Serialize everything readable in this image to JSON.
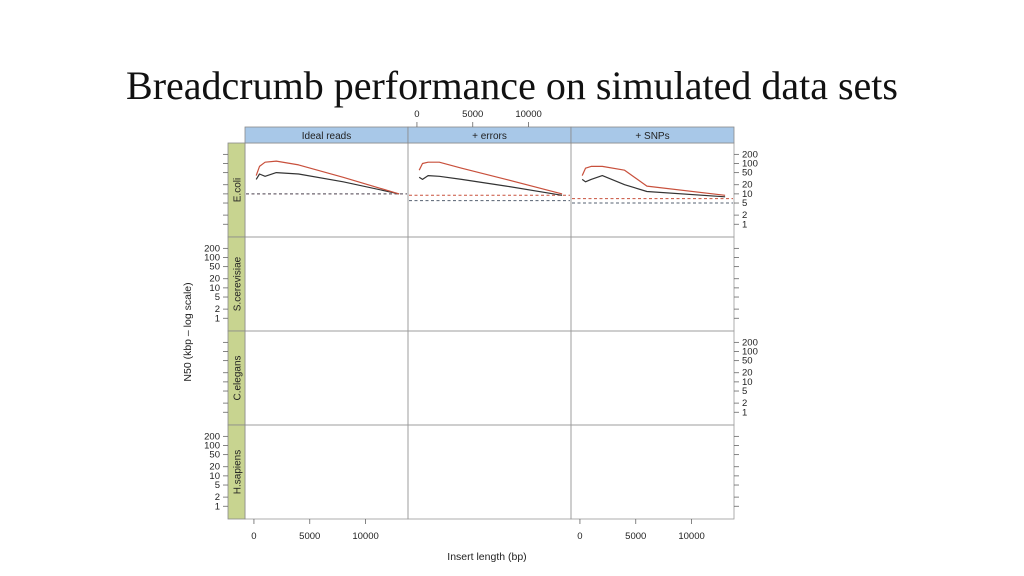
{
  "slide": {
    "title": "Breadcrumb performance on simulated data sets"
  },
  "chart_data": {
    "type": "line",
    "xlabel": "Insert length (bp)",
    "ylabel": "N50 (kbp – log scale)",
    "x_ticks": [
      0,
      5000,
      10000
    ],
    "y_ticks": [
      1,
      2,
      5,
      10,
      20,
      50,
      100,
      200
    ],
    "y_scale": "log",
    "ylim": [
      0.6,
      300
    ],
    "xlim": [
      -800,
      13800
    ],
    "columns": [
      "Ideal reads",
      "+ errors",
      "+ SNPs"
    ],
    "rows": [
      "E.coli",
      "S.cerevisiae",
      "C.elegans",
      "H.sapiens"
    ],
    "colors": {
      "red": "#c8503c",
      "black": "#333333",
      "strip_col": "#a8c8e8",
      "strip_row": "#c8d490"
    },
    "panels": [
      {
        "row": "E.coli",
        "col": "Ideal reads",
        "red": [
          [
            200,
            40
          ],
          [
            500,
            80
          ],
          [
            1000,
            110
          ],
          [
            2000,
            120
          ],
          [
            4000,
            90
          ],
          [
            8000,
            35
          ],
          [
            13000,
            10
          ]
        ],
        "black": [
          [
            200,
            30
          ],
          [
            500,
            45
          ],
          [
            1000,
            38
          ],
          [
            2000,
            50
          ],
          [
            4000,
            45
          ],
          [
            8000,
            25
          ],
          [
            13000,
            10
          ]
        ],
        "red_dash": 10,
        "black_dash": 10
      },
      {
        "row": "E.coli",
        "col": "+ errors",
        "red": [
          [
            200,
            60
          ],
          [
            500,
            100
          ],
          [
            1000,
            110
          ],
          [
            2000,
            110
          ],
          [
            4000,
            70
          ],
          [
            8000,
            30
          ],
          [
            13000,
            10
          ]
        ],
        "black": [
          [
            200,
            35
          ],
          [
            500,
            30
          ],
          [
            1000,
            40
          ],
          [
            2000,
            38
          ],
          [
            4000,
            30
          ],
          [
            8000,
            18
          ],
          [
            13000,
            9
          ]
        ],
        "red_dash": 9,
        "black_dash": 6
      },
      {
        "row": "E.coli",
        "col": "+ SNPs",
        "red": [
          [
            200,
            40
          ],
          [
            500,
            70
          ],
          [
            1000,
            80
          ],
          [
            2000,
            80
          ],
          [
            4000,
            60
          ],
          [
            6000,
            18
          ],
          [
            13000,
            9
          ]
        ],
        "black": [
          [
            200,
            30
          ],
          [
            500,
            25
          ],
          [
            1000,
            30
          ],
          [
            2000,
            40
          ],
          [
            4000,
            20
          ],
          [
            6000,
            12
          ],
          [
            13000,
            8
          ]
        ],
        "red_dash": 7,
        "black_dash": 5
      }
    ]
  }
}
